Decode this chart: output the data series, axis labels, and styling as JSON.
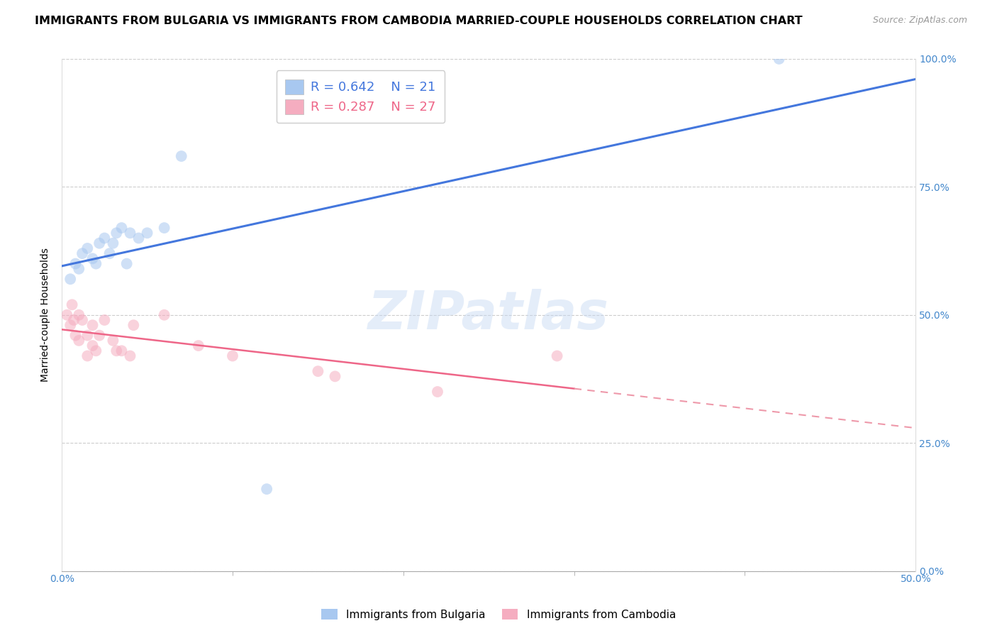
{
  "title": "IMMIGRANTS FROM BULGARIA VS IMMIGRANTS FROM CAMBODIA MARRIED-COUPLE HOUSEHOLDS CORRELATION CHART",
  "source": "Source: ZipAtlas.com",
  "ylabel_left": "Married-couple Households",
  "xlim": [
    0.0,
    0.5
  ],
  "ylim": [
    0.0,
    1.0
  ],
  "yticks": [
    0.0,
    0.25,
    0.5,
    0.75,
    1.0
  ],
  "xticks_minor": [
    0.0,
    0.1,
    0.2,
    0.3,
    0.4,
    0.5
  ],
  "legend_blue_R": "0.642",
  "legend_blue_N": "21",
  "legend_pink_R": "0.287",
  "legend_pink_N": "27",
  "blue_color": "#a8c8f0",
  "pink_color": "#f5adc0",
  "line_blue_color": "#4477dd",
  "line_pink_color": "#ee6688",
  "line_pink_dash_color": "#ee99aa",
  "watermark": "ZIPatlas",
  "bulgaria_x": [
    0.005,
    0.008,
    0.01,
    0.012,
    0.015,
    0.018,
    0.02,
    0.022,
    0.025,
    0.028,
    0.03,
    0.032,
    0.035,
    0.038,
    0.04,
    0.045,
    0.05,
    0.06,
    0.07,
    0.12,
    0.42
  ],
  "bulgaria_y": [
    0.57,
    0.6,
    0.59,
    0.62,
    0.63,
    0.61,
    0.6,
    0.64,
    0.65,
    0.62,
    0.64,
    0.66,
    0.67,
    0.6,
    0.66,
    0.65,
    0.66,
    0.67,
    0.81,
    0.16,
    1.0
  ],
  "cambodia_x": [
    0.003,
    0.005,
    0.006,
    0.007,
    0.008,
    0.01,
    0.01,
    0.012,
    0.015,
    0.015,
    0.018,
    0.018,
    0.02,
    0.022,
    0.025,
    0.03,
    0.032,
    0.035,
    0.04,
    0.042,
    0.06,
    0.08,
    0.1,
    0.15,
    0.16,
    0.22,
    0.29
  ],
  "cambodia_y": [
    0.5,
    0.48,
    0.52,
    0.49,
    0.46,
    0.45,
    0.5,
    0.49,
    0.42,
    0.46,
    0.44,
    0.48,
    0.43,
    0.46,
    0.49,
    0.45,
    0.43,
    0.43,
    0.42,
    0.48,
    0.5,
    0.44,
    0.42,
    0.39,
    0.38,
    0.35,
    0.42
  ],
  "marker_size": 130,
  "alpha": 0.55,
  "title_fontsize": 11.5,
  "source_fontsize": 9,
  "axis_label_fontsize": 10,
  "tick_fontsize": 10,
  "legend_fontsize": 13
}
